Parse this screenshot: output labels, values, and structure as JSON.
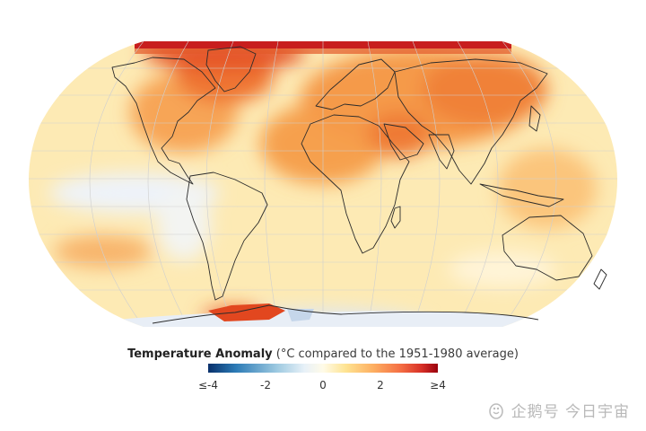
{
  "legend": {
    "title_bold": "Temperature Anomaly",
    "title_rest": " (°C compared to the 1951-1980 average)",
    "ticks": [
      "≤-4",
      "-2",
      "0",
      "2",
      "≥4"
    ],
    "colors": [
      "#08306b",
      "#2c7bb6",
      "#9ecae1",
      "#fffbe8",
      "#fee391",
      "#fdae61",
      "#f46d43",
      "#d73027",
      "#99000d"
    ]
  },
  "watermark": {
    "text": "企鹅号 今日宇宙"
  },
  "map_colors": {
    "ocean_base": "#fde9b0",
    "warm": "#f7a04a",
    "hot": "#ee6a2c",
    "extreme": "#c81e1e",
    "cool": "#e6eef7",
    "graticule": "#c9c9c9",
    "coast": "#333333"
  }
}
